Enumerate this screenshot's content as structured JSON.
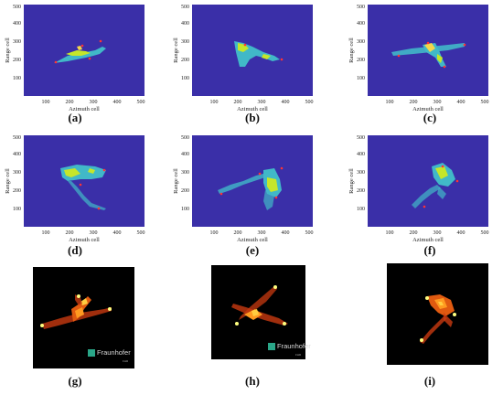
{
  "axes": {
    "y_ticks": [
      "500",
      "400",
      "300",
      "200",
      "100"
    ],
    "x_ticks": [
      "100",
      "200",
      "300",
      "400",
      "500"
    ],
    "y_label": "Range cell",
    "x_label": "Azimuth cell"
  },
  "captions": {
    "a": "(a)",
    "b": "(b)",
    "c": "(c)",
    "d": "(d)",
    "e": "(e)",
    "f": "(f)",
    "g": "(g)",
    "h": "(h)",
    "i": "(i)"
  },
  "logo": {
    "text": "Fraunhofer",
    "sub": "FHR"
  },
  "colors": {
    "background": "#3a2fa8",
    "isar_background": "#000000",
    "target": "#ff3333"
  }
}
